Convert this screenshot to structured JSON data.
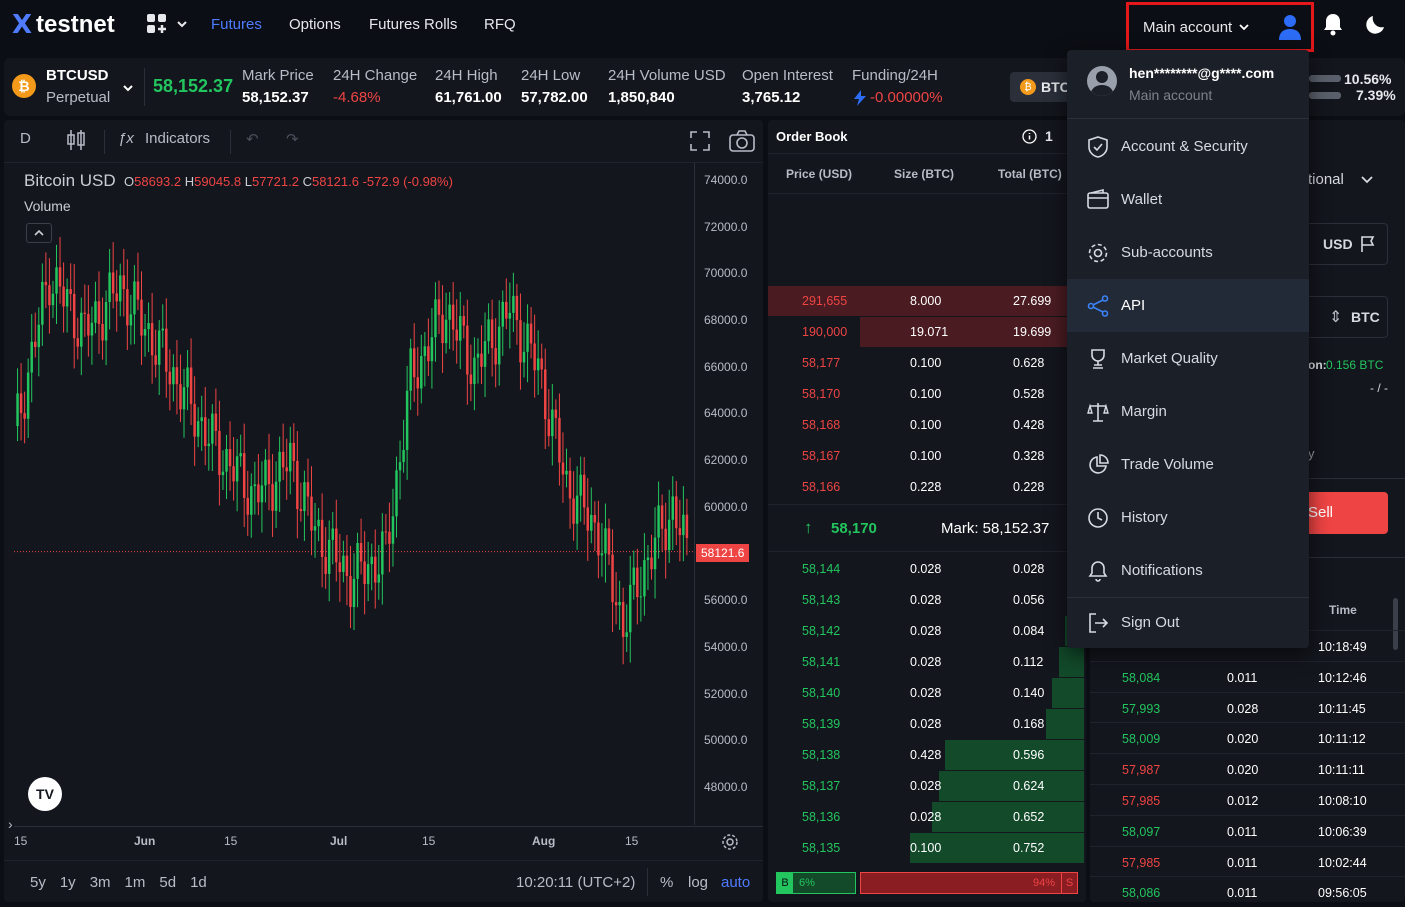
{
  "brand": {
    "name": "testnet",
    "logo_mark": "X"
  },
  "nav": {
    "items": [
      "Futures",
      "Options",
      "Futures Rolls",
      "RFQ"
    ],
    "active": "Futures"
  },
  "account": {
    "label": "Main account",
    "email": "hen********@g****.com",
    "subtitle": "Main account"
  },
  "ticker": {
    "symbol": "BTCUSD",
    "type": "Perpetual",
    "last": "58,152.37",
    "stats": [
      {
        "label": "Mark Price",
        "value": "58,152.37"
      },
      {
        "label": "24H Change",
        "value": "-4.68%"
      },
      {
        "label": "24H High",
        "value": "61,761.00"
      },
      {
        "label": "24H Low",
        "value": "57,782.00"
      },
      {
        "label": "24H Volume USD",
        "value": "1,850,840"
      },
      {
        "label": "Open Interest",
        "value": "3,765.12"
      },
      {
        "label": "Funding/24H",
        "value": "-0.00000%"
      }
    ],
    "chip": "BTC",
    "ratios": [
      "10.56%",
      "7.39%"
    ]
  },
  "chart": {
    "interval": "D",
    "indicators_label": "Indicators",
    "title": "Bitcoin USD",
    "ohlc": {
      "o": "58693.2",
      "h": "59045.8",
      "l": "57721.2",
      "c": "58121.6",
      "chg": "-572.9 (-0.98%)"
    },
    "volume_label": "Volume",
    "price_ticks": [
      "74000.0",
      "72000.0",
      "70000.0",
      "68000.0",
      "66000.0",
      "64000.0",
      "62000.0",
      "60000.0",
      "58121.6",
      "56000.0",
      "54000.0",
      "52000.0",
      "50000.0",
      "48000.0"
    ],
    "date_ticks": [
      "15",
      "Jun",
      "15",
      "Jul",
      "15",
      "Aug",
      "15"
    ],
    "ranges": [
      "5y",
      "1y",
      "3m",
      "1m",
      "5d",
      "1d"
    ],
    "clock": "10:20:11 (UTC+2)",
    "scale_opts": [
      "%",
      "log",
      "auto"
    ],
    "last_price": "58121.6"
  },
  "order_book": {
    "title": "Order Book",
    "grouping": "1",
    "headers": [
      "Price (USD)",
      "Size (BTC)",
      "Total (BTC)"
    ],
    "asks": [
      {
        "price": "291,655",
        "size": "8.000",
        "total": "27.699",
        "depth": 100
      },
      {
        "price": "190,000",
        "size": "19.071",
        "total": "19.699",
        "depth": 71
      },
      {
        "price": "58,177",
        "size": "0.100",
        "total": "0.628",
        "depth": 0
      },
      {
        "price": "58,170",
        "size": "0.100",
        "total": "0.528",
        "depth": 0
      },
      {
        "price": "58,168",
        "size": "0.100",
        "total": "0.428",
        "depth": 0
      },
      {
        "price": "58,167",
        "size": "0.100",
        "total": "0.328",
        "depth": 0
      },
      {
        "price": "58,166",
        "size": "0.228",
        "total": "0.228",
        "depth": 0
      }
    ],
    "mid": {
      "last": "58,170",
      "mark": "Mark: 58,152.37"
    },
    "bids": [
      {
        "price": "58,144",
        "size": "0.028",
        "total": "0.028",
        "depth": 2
      },
      {
        "price": "58,143",
        "size": "0.028",
        "total": "0.056",
        "depth": 4
      },
      {
        "price": "58,142",
        "size": "0.028",
        "total": "0.084",
        "depth": 6
      },
      {
        "price": "58,141",
        "size": "0.028",
        "total": "0.112",
        "depth": 8
      },
      {
        "price": "58,140",
        "size": "0.028",
        "total": "0.140",
        "depth": 10
      },
      {
        "price": "58,139",
        "size": "0.028",
        "total": "0.168",
        "depth": 12
      },
      {
        "price": "58,138",
        "size": "0.428",
        "total": "0.596",
        "depth": 44
      },
      {
        "price": "58,137",
        "size": "0.028",
        "total": "0.624",
        "depth": 46
      },
      {
        "price": "58,136",
        "size": "0.028",
        "total": "0.652",
        "depth": 48
      },
      {
        "price": "58,135",
        "size": "0.100",
        "total": "0.752",
        "depth": 55
      }
    ],
    "ratio": {
      "buy_label": "B",
      "buy": "6%",
      "sell": "94%",
      "sell_label": "S"
    }
  },
  "order_entry": {
    "type_label": "tional",
    "currency1": "USD",
    "currency2": "BTC",
    "position_label": "on:",
    "position_value": "0.156 BTC",
    "dash": "- / -",
    "partial_y": "y",
    "sell_label": "Sell"
  },
  "trades": {
    "time_header": "Time",
    "rows": [
      {
        "price": "",
        "size": "",
        "time": "10:18:49",
        "side": "buy"
      },
      {
        "price": "58,084",
        "size": "0.011",
        "time": "10:12:46",
        "side": "buy"
      },
      {
        "price": "57,993",
        "size": "0.028",
        "time": "10:11:45",
        "side": "buy"
      },
      {
        "price": "58,009",
        "size": "0.020",
        "time": "10:11:12",
        "side": "buy"
      },
      {
        "price": "57,987",
        "size": "0.020",
        "time": "10:11:11",
        "side": "sell"
      },
      {
        "price": "57,985",
        "size": "0.012",
        "time": "10:08:10",
        "side": "sell"
      },
      {
        "price": "58,097",
        "size": "0.011",
        "time": "10:06:39",
        "side": "buy"
      },
      {
        "price": "57,985",
        "size": "0.011",
        "time": "10:02:44",
        "side": "sell"
      },
      {
        "price": "58,086",
        "size": "0.011",
        "time": "09:56:05",
        "side": "buy"
      }
    ]
  },
  "menu": {
    "items": [
      {
        "label": "Account & Security",
        "icon": "shield-check-icon"
      },
      {
        "label": "Wallet",
        "icon": "wallet-icon"
      },
      {
        "label": "Sub-accounts",
        "icon": "gear-icon"
      },
      {
        "label": "API",
        "icon": "share-nodes-icon",
        "active": true
      },
      {
        "label": "Market Quality",
        "icon": "trophy-icon"
      },
      {
        "label": "Margin",
        "icon": "scale-icon"
      },
      {
        "label": "Trade Volume",
        "icon": "pie-chart-icon"
      },
      {
        "label": "History",
        "icon": "clock-icon"
      },
      {
        "label": "Notifications",
        "icon": "bell-icon"
      },
      {
        "label": "Sign Out",
        "icon": "sign-out-icon"
      }
    ]
  },
  "colors": {
    "accent": "#4f7cff",
    "up": "#23c55e",
    "down": "#ef4444",
    "highlight_border": "#e3181b"
  }
}
